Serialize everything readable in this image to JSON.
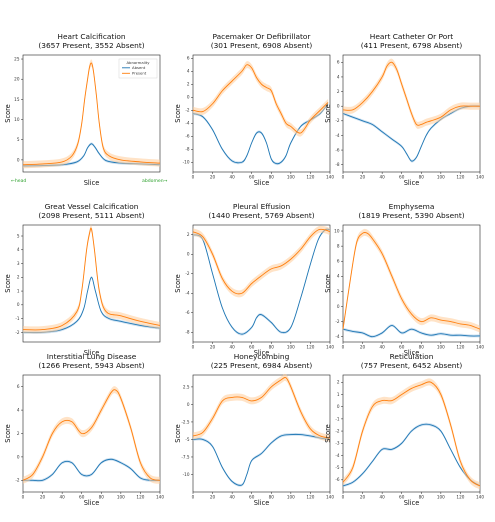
{
  "colors": {
    "absent": "#1f77b4",
    "present": "#ff7f0e",
    "band_absent": "#a6c8e6",
    "band_present": "#ffcc99",
    "annotation": "#2ca02c"
  },
  "chart_data": [
    {
      "type": "line",
      "title": "Heart Calcification",
      "subtitle": "(3657 Present, 3552 Absent)",
      "xlabel": "Slice",
      "ylabel": "Score",
      "xlim": [
        0,
        140
      ],
      "ylim": [
        -3,
        26
      ],
      "xticks": [],
      "yticks": [
        0,
        5,
        10,
        15,
        20,
        25
      ],
      "legend": {
        "title": "Abnormality",
        "entries": [
          "Absent",
          "Present"
        ],
        "position": "top-right"
      },
      "annotations": {
        "left": "←head",
        "right": "abdomen→"
      },
      "series": [
        {
          "name": "Absent",
          "x": [
            0,
            20,
            40,
            55,
            62,
            66,
            70,
            74,
            78,
            85,
            100,
            120,
            140
          ],
          "y": [
            -1.5,
            -1.4,
            -1.2,
            -0.5,
            1,
            3,
            4,
            3,
            1.5,
            -0.2,
            -0.8,
            -1.0,
            -1.2
          ]
        },
        {
          "name": "Present",
          "x": [
            0,
            20,
            40,
            50,
            56,
            60,
            63,
            66,
            68,
            70,
            72,
            75,
            78,
            82,
            88,
            100,
            120,
            140
          ],
          "y": [
            -1.2,
            -1.0,
            -0.5,
            1,
            4,
            9,
            15,
            20,
            23,
            24,
            22,
            16,
            9,
            3,
            1,
            0,
            -0.5,
            -0.8
          ]
        }
      ]
    },
    {
      "type": "line",
      "title": "Pacemaker Or Defibrillator",
      "subtitle": "(301 Present, 6908 Absent)",
      "xlabel": "Slice",
      "ylabel": "Score",
      "xlim": [
        0,
        140
      ],
      "ylim": [
        -11.5,
        6.5
      ],
      "xticks": [
        0,
        20,
        40,
        60,
        80,
        100,
        120,
        140
      ],
      "yticks": [
        -10,
        -8,
        -6,
        -4,
        -2,
        0,
        2,
        4,
        6
      ],
      "series": [
        {
          "name": "Absent",
          "x": [
            0,
            10,
            20,
            30,
            40,
            50,
            55,
            60,
            65,
            70,
            75,
            80,
            85,
            90,
            95,
            100,
            110,
            120,
            130,
            138
          ],
          "y": [
            -2.5,
            -3,
            -5,
            -8,
            -9.8,
            -10,
            -9,
            -7,
            -5.5,
            -5.5,
            -7,
            -9.5,
            -10.2,
            -10,
            -9,
            -7,
            -4.5,
            -3.5,
            -2.5,
            -1
          ]
        },
        {
          "name": "Present",
          "x": [
            0,
            10,
            20,
            30,
            40,
            50,
            55,
            60,
            65,
            70,
            75,
            80,
            85,
            90,
            95,
            100,
            110,
            120,
            130,
            138
          ],
          "y": [
            -2,
            -2.2,
            -1,
            1,
            2.5,
            4,
            5,
            4.5,
            3,
            2,
            1.5,
            1,
            -1,
            -2.5,
            -4,
            -4.5,
            -5.5,
            -3.5,
            -2,
            -0.8
          ]
        }
      ]
    },
    {
      "type": "line",
      "title": "Heart Catheter Or Port",
      "subtitle": "(411 Present, 6798 Absent)",
      "xlabel": "Slice",
      "ylabel": "Score",
      "xlim": [
        0,
        140
      ],
      "ylim": [
        -9,
        7
      ],
      "xticks": [
        0,
        20,
        40,
        60,
        80,
        100,
        120,
        140
      ],
      "yticks": [
        -8,
        -6,
        -4,
        -2,
        0,
        2,
        4,
        6
      ],
      "series": [
        {
          "name": "Absent",
          "x": [
            0,
            10,
            20,
            30,
            40,
            50,
            60,
            65,
            70,
            75,
            80,
            85,
            90,
            100,
            110,
            120,
            130,
            140
          ],
          "y": [
            -1,
            -1.5,
            -2,
            -2.5,
            -3.5,
            -4.5,
            -5.5,
            -6.5,
            -7.5,
            -7,
            -5.5,
            -4,
            -3,
            -1.8,
            -1,
            -0.3,
            0,
            0
          ]
        },
        {
          "name": "Present",
          "x": [
            0,
            10,
            20,
            30,
            40,
            45,
            50,
            55,
            60,
            65,
            70,
            75,
            80,
            85,
            90,
            100,
            110,
            120,
            130,
            140
          ],
          "y": [
            -0.5,
            -0.5,
            0.5,
            2,
            4,
            5.5,
            6,
            5,
            3,
            1,
            -1,
            -2.5,
            -2.5,
            -2.2,
            -2,
            -1.5,
            -0.5,
            0,
            0,
            0
          ]
        }
      ]
    },
    {
      "type": "line",
      "title": "Great Vessel Calcification",
      "subtitle": "(2098 Present, 5111 Absent)",
      "xlabel": "Slice",
      "ylabel": "Score",
      "xlim": [
        0,
        140
      ],
      "ylim": [
        -2.7,
        5.8
      ],
      "xticks": [],
      "yticks": [
        -2,
        -1,
        0,
        1,
        2,
        3,
        4,
        5
      ],
      "series": [
        {
          "name": "Absent",
          "x": [
            0,
            20,
            40,
            55,
            62,
            66,
            70,
            74,
            80,
            88,
            100,
            120,
            140
          ],
          "y": [
            -2,
            -2,
            -1.8,
            -1.2,
            -0.3,
            1,
            2,
            1,
            -0.5,
            -1,
            -1.2,
            -1.5,
            -1.7
          ]
        },
        {
          "name": "Present",
          "x": [
            0,
            20,
            40,
            55,
            60,
            65,
            68,
            70,
            73,
            78,
            85,
            100,
            120,
            140
          ],
          "y": [
            -1.8,
            -1.8,
            -1.5,
            -0.5,
            1,
            4,
            5.2,
            5.5,
            4,
            1,
            -0.5,
            -0.8,
            -1.2,
            -1.5
          ]
        }
      ]
    },
    {
      "type": "line",
      "title": "Pleural Effusion",
      "subtitle": "(1440 Present, 5769 Absent)",
      "xlabel": "Slice",
      "ylabel": "Score",
      "xlim": [
        0,
        140
      ],
      "ylim": [
        -9,
        3
      ],
      "xticks": [
        0,
        20,
        40,
        60,
        80,
        100,
        120,
        140
      ],
      "yticks": [
        -8,
        -6,
        -4,
        -2,
        0,
        2
      ],
      "series": [
        {
          "name": "Absent",
          "x": [
            0,
            10,
            20,
            30,
            40,
            50,
            60,
            65,
            70,
            80,
            90,
            100,
            110,
            120,
            128,
            135,
            140
          ],
          "y": [
            2,
            1.5,
            -2,
            -5.5,
            -7.5,
            -8.2,
            -7.5,
            -6.5,
            -6.2,
            -7,
            -8,
            -7.5,
            -4.5,
            -1,
            1.5,
            2.5,
            2.5
          ]
        },
        {
          "name": "Present",
          "x": [
            0,
            10,
            20,
            30,
            40,
            50,
            60,
            70,
            80,
            90,
            100,
            110,
            120,
            128,
            135,
            140
          ],
          "y": [
            2.3,
            1.8,
            0,
            -2.5,
            -3.8,
            -4,
            -3,
            -2.2,
            -1.5,
            -1.2,
            -0.5,
            0.5,
            1.8,
            2.5,
            2.5,
            2.3
          ]
        }
      ]
    },
    {
      "type": "line",
      "title": "Emphysema",
      "subtitle": "(1819 Present, 5390 Absent)",
      "xlabel": "Slice",
      "ylabel": "Score",
      "xlim": [
        0,
        140
      ],
      "ylim": [
        -4.7,
        10.8
      ],
      "xticks": [
        0,
        20,
        40,
        60,
        80,
        100,
        120,
        140
      ],
      "yticks": [
        -4,
        -2,
        0,
        2,
        4,
        6,
        8,
        10
      ],
      "series": [
        {
          "name": "Absent",
          "x": [
            0,
            10,
            20,
            30,
            40,
            50,
            60,
            70,
            80,
            90,
            100,
            110,
            120,
            130,
            140
          ],
          "y": [
            -3,
            -3.3,
            -3.5,
            -4,
            -3.5,
            -2.5,
            -3.5,
            -3,
            -3.5,
            -3.8,
            -3.6,
            -3.8,
            -3.8,
            -3.9,
            -3.9
          ]
        },
        {
          "name": "Present",
          "x": [
            0,
            8,
            14,
            20,
            25,
            30,
            40,
            50,
            60,
            70,
            80,
            90,
            100,
            110,
            120,
            130,
            140
          ],
          "y": [
            -3,
            4,
            8.5,
            9.7,
            9.7,
            9,
            7,
            4,
            1,
            -1,
            -2,
            -1.5,
            -1.8,
            -2,
            -2.3,
            -2.5,
            -3
          ]
        }
      ]
    },
    {
      "type": "line",
      "title": "Interstitial Lung Disease",
      "subtitle": "(1266 Present, 5943 Absent)",
      "xlabel": "Slice",
      "ylabel": "Score",
      "xlim": [
        0,
        140
      ],
      "ylim": [
        -3,
        7
      ],
      "xticks": [
        0,
        20,
        40,
        60,
        80,
        100,
        120,
        140
      ],
      "yticks": [
        -2,
        0,
        2,
        4,
        6
      ],
      "series": [
        {
          "name": "Absent",
          "x": [
            0,
            10,
            20,
            30,
            40,
            50,
            60,
            70,
            80,
            90,
            100,
            110,
            120,
            130,
            140
          ],
          "y": [
            -2,
            -2,
            -2,
            -1.5,
            -0.5,
            -0.5,
            -1.5,
            -1.5,
            -0.5,
            -0.2,
            -0.5,
            -1,
            -1.8,
            -2,
            -2
          ]
        },
        {
          "name": "Present",
          "x": [
            0,
            10,
            20,
            30,
            40,
            50,
            60,
            70,
            80,
            90,
            95,
            100,
            110,
            120,
            130,
            140
          ],
          "y": [
            -2,
            -1.5,
            0,
            2,
            3,
            3,
            2,
            2.5,
            4,
            5.5,
            5.7,
            5,
            2.5,
            -0.5,
            -1.8,
            -2
          ]
        }
      ]
    },
    {
      "type": "line",
      "title": "Honeycombing",
      "subtitle": "(225 Present, 6984 Absent)",
      "xlabel": "Slice",
      "ylabel": "Score",
      "xlim": [
        0,
        140
      ],
      "ylim": [
        -12.5,
        4.2
      ],
      "xticks": [
        0,
        20,
        40,
        60,
        80,
        100,
        120,
        140
      ],
      "yticks": [
        -10,
        -7.5,
        -5,
        -2.5,
        0,
        2.5
      ],
      "series": [
        {
          "name": "Absent",
          "x": [
            0,
            10,
            20,
            30,
            40,
            50,
            55,
            60,
            70,
            80,
            90,
            100,
            110,
            120,
            130,
            140
          ],
          "y": [
            -5,
            -5,
            -6,
            -9,
            -11,
            -11.5,
            -10,
            -8,
            -7,
            -5.5,
            -4.5,
            -4.3,
            -4.3,
            -4.5,
            -4.8,
            -5
          ]
        },
        {
          "name": "Present",
          "x": [
            0,
            10,
            20,
            30,
            40,
            50,
            60,
            70,
            80,
            90,
            95,
            100,
            110,
            120,
            130,
            140
          ],
          "y": [
            -4.5,
            -4,
            -2,
            0.5,
            1,
            1,
            0.5,
            1,
            2.5,
            3.5,
            3.8,
            2.5,
            -1,
            -3.5,
            -4.5,
            -4.8
          ]
        }
      ]
    },
    {
      "type": "line",
      "title": "Reticulation",
      "subtitle": "(757 Present, 6452 Absent)",
      "xlabel": "Slice",
      "ylabel": "Score",
      "xlim": [
        0,
        140
      ],
      "ylim": [
        -7,
        2.6
      ],
      "xticks": [
        0,
        20,
        40,
        60,
        80,
        100,
        120,
        140
      ],
      "yticks": [
        -6,
        -5,
        -4,
        -3,
        -2,
        -1,
        0,
        1,
        2
      ],
      "series": [
        {
          "name": "Absent",
          "x": [
            0,
            10,
            20,
            30,
            40,
            50,
            60,
            70,
            80,
            90,
            100,
            110,
            120,
            130,
            140
          ],
          "y": [
            -6.5,
            -6.2,
            -5.5,
            -4.5,
            -3.5,
            -3.5,
            -3,
            -2,
            -1.5,
            -1.5,
            -2,
            -3.5,
            -5,
            -6,
            -6.5
          ]
        },
        {
          "name": "Present",
          "x": [
            0,
            10,
            20,
            30,
            40,
            50,
            60,
            70,
            80,
            90,
            100,
            110,
            120,
            130,
            140
          ],
          "y": [
            -6.2,
            -5,
            -2,
            0,
            0.5,
            0.5,
            1,
            1.5,
            1.8,
            2,
            1,
            -1.5,
            -4.5,
            -6,
            -6.5
          ]
        }
      ]
    }
  ]
}
